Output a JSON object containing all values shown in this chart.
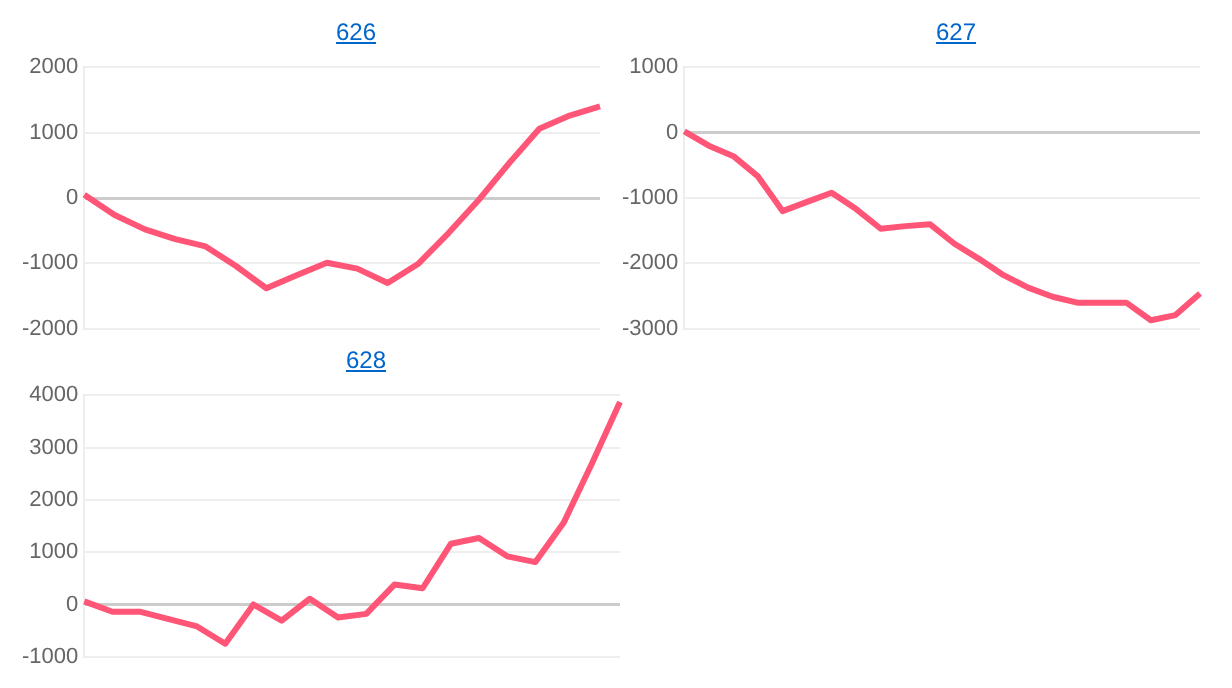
{
  "chart_data": [
    {
      "type": "line",
      "title": "626",
      "categories": [
        null,
        null,
        null,
        null,
        null,
        null,
        null,
        null,
        null,
        null,
        null,
        null,
        null,
        null,
        null,
        null,
        null,
        null
      ],
      "ylim": [
        -2000,
        2000
      ],
      "yticks": [
        -2000,
        -1000,
        0,
        1000,
        2000
      ],
      "grid": "y",
      "tick_labels": "y",
      "series": [
        {
          "color": "#ff5577",
          "values": [
            50,
            -260,
            -480,
            -630,
            -740,
            -1040,
            -1380,
            -1180,
            -990,
            -1080,
            -1300,
            -1010,
            -540,
            -30,
            530,
            1060,
            1260,
            1400
          ]
        }
      ]
    },
    {
      "type": "line",
      "title": "627",
      "categories": [
        null,
        null,
        null,
        null,
        null,
        null,
        null,
        null,
        null,
        null,
        null,
        null,
        null,
        null,
        null,
        null,
        null,
        null,
        null,
        null,
        null,
        null
      ],
      "ylim": [
        -3000,
        1000
      ],
      "yticks": [
        -3000,
        -2000,
        -1000,
        0,
        1000
      ],
      "grid": "y",
      "tick_labels": "y",
      "series": [
        {
          "color": "#ff5577",
          "values": [
            20,
            -200,
            -360,
            -670,
            -1200,
            -1060,
            -920,
            -1170,
            -1470,
            -1430,
            -1400,
            -1700,
            -1930,
            -2180,
            -2370,
            -2510,
            -2600,
            -2600,
            -2600,
            -2870,
            -2790,
            -2460
          ]
        }
      ]
    },
    {
      "type": "line",
      "title": "628",
      "categories": [
        null,
        null,
        null,
        null,
        null,
        null,
        null,
        null,
        null,
        null,
        null,
        null,
        null,
        null,
        null,
        null,
        null,
        null,
        null,
        null
      ],
      "ylim": [
        -1000,
        4000
      ],
      "yticks": [
        -1000,
        0,
        1000,
        2000,
        3000,
        4000
      ],
      "grid": "y",
      "tick_labels": "y",
      "series": [
        {
          "color": "#ff5577",
          "values": [
            60,
            -140,
            -140,
            -280,
            -420,
            -750,
            0,
            -310,
            110,
            -250,
            -180,
            380,
            310,
            1160,
            1270,
            920,
            810,
            1560,
            2690,
            3870
          ]
        }
      ]
    }
  ]
}
